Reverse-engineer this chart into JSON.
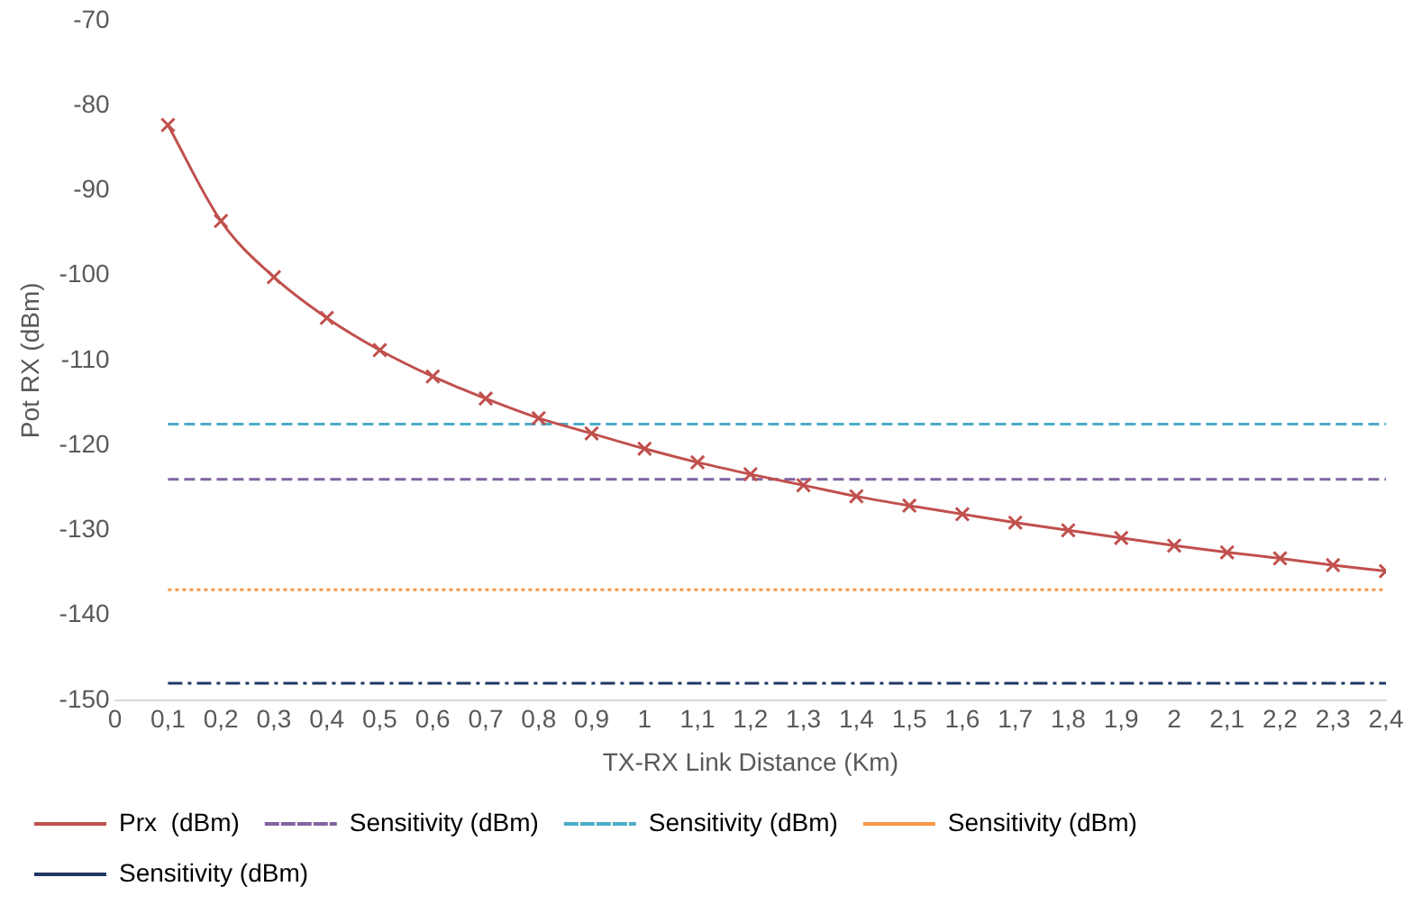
{
  "chart_data": {
    "type": "line",
    "xlabel": "TX-RX Link Distance (Km)",
    "ylabel": "Pot RX (dBm)",
    "xlim": [
      0,
      2.4
    ],
    "xticks": [
      0,
      {
        "value": 0.1,
        "label": "0,1"
      },
      {
        "value": 0.2,
        "label": "0,2"
      },
      {
        "value": 0.3,
        "label": "0,3"
      },
      {
        "value": 0.4,
        "label": "0,4"
      },
      {
        "value": 0.5,
        "label": "0,5"
      },
      {
        "value": 0.6,
        "label": "0,6"
      },
      {
        "value": 0.7,
        "label": "0,7"
      },
      {
        "value": 0.8,
        "label": "0,8"
      },
      {
        "value": 0.9,
        "label": "0,9"
      },
      1,
      {
        "value": 1.1,
        "label": "1,1"
      },
      {
        "value": 1.2,
        "label": "1,2"
      },
      {
        "value": 1.3,
        "label": "1,3"
      },
      {
        "value": 1.4,
        "label": "1,4"
      },
      {
        "value": 1.5,
        "label": "1,5"
      },
      {
        "value": 1.6,
        "label": "1,6"
      },
      {
        "value": 1.7,
        "label": "1,7"
      },
      {
        "value": 1.8,
        "label": "1,8"
      },
      {
        "value": 1.9,
        "label": "1,9"
      },
      2,
      {
        "value": 2.1,
        "label": "2,1"
      },
      {
        "value": 2.2,
        "label": "2,2"
      },
      {
        "value": 2.3,
        "label": "2,3"
      },
      {
        "value": 2.4,
        "label": "2,4"
      }
    ],
    "ylim": [
      -150,
      -70
    ],
    "yticks": [
      -150,
      -140,
      -130,
      -120,
      -110,
      -100,
      -90,
      -80,
      -70
    ],
    "grid": false,
    "legend": "bottom",
    "series": [
      {
        "name": "Prx  (dBm)",
        "color": "#c0504d",
        "marker": "cross",
        "line_style": "solid",
        "x": [
          0.1,
          0.2,
          0.3,
          0.4,
          0.5,
          0.6,
          0.7,
          0.8,
          0.9,
          1,
          1.1,
          1.2,
          1.3,
          1.4,
          1.5,
          1.6,
          1.7,
          1.8,
          1.9,
          2,
          2.1,
          2.2,
          2.3,
          2.4
        ],
        "values": [
          -82.3,
          -93.6,
          -100.2,
          -105,
          -108.8,
          -111.9,
          -114.5,
          -116.8,
          -118.6,
          -120.4,
          -122,
          -123.4,
          -124.7,
          -126,
          -127.1,
          -128.1,
          -129.1,
          -130,
          -130.9,
          -131.8,
          -132.6,
          -133.3,
          -134.1,
          -134.8
        ]
      },
      {
        "name": "Sensitivity (dBm)",
        "color": "#8064a2",
        "marker": "none",
        "line_style": "dashed",
        "x": [
          0.1,
          2.4
        ],
        "values": [
          -124,
          -124
        ]
      },
      {
        "name": "Sensitivity (dBm)",
        "color": "#4bacc6",
        "marker": "none",
        "line_style": "dashed",
        "x": [
          0.1,
          2.4
        ],
        "values": [
          -117.5,
          -117.5
        ]
      },
      {
        "name": "Sensitivity (dBm)",
        "color": "#f79646",
        "marker": "none",
        "line_style": "dotted",
        "x": [
          0.1,
          2.4
        ],
        "values": [
          -137,
          -137
        ]
      },
      {
        "name": "Sensitivity (dBm)",
        "color": "#1f3864",
        "marker": "none",
        "line_style": "dashdot",
        "x": [
          0.1,
          2.4
        ],
        "values": [
          -148,
          -148
        ]
      }
    ]
  }
}
